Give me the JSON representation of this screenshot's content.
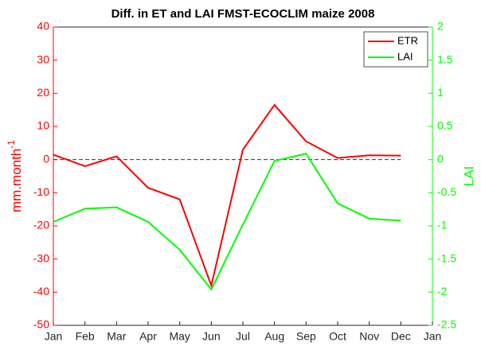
{
  "chart_data": {
    "type": "line",
    "title": "Diff. in ET and LAI FMST-ECOCLIM maize 2008",
    "categories": [
      "Jan",
      "Feb",
      "Mar",
      "Apr",
      "May",
      "Jun",
      "Jul",
      "Aug",
      "Sep",
      "Oct",
      "Nov",
      "Dec",
      "Jan"
    ],
    "ylabel": "mm.month",
    "ylabel_sup": "-1",
    "y2label": "LAI",
    "ylim": [
      -50,
      40
    ],
    "yticks": [
      -50,
      -40,
      -30,
      -20,
      -10,
      0,
      10,
      20,
      30,
      40
    ],
    "y2lim": [
      -2.5,
      2
    ],
    "y2ticks": [
      -2.5,
      -2,
      -1.5,
      -1,
      -0.5,
      0,
      0.5,
      1,
      1.5,
      2
    ],
    "ycolor": "#ff0000",
    "y2color": "#00ff00",
    "hline": {
      "value": 0,
      "style": "dashed"
    },
    "legend": "upper right",
    "series": [
      {
        "name": "ETR",
        "color": "#ff0000",
        "values": [
          1.5,
          -2,
          1,
          -8.5,
          -12,
          -38,
          3,
          16.5,
          5.5,
          0.5,
          1.3,
          1.2,
          null
        ]
      },
      {
        "name": "LAI",
        "color": "#00ff00",
        "axis": "y2",
        "values": [
          -0.94,
          -0.74,
          -0.72,
          -0.94,
          -1.36,
          -1.96,
          -0.98,
          -0.02,
          0.09,
          -0.66,
          -0.89,
          -0.92,
          null
        ]
      }
    ]
  }
}
